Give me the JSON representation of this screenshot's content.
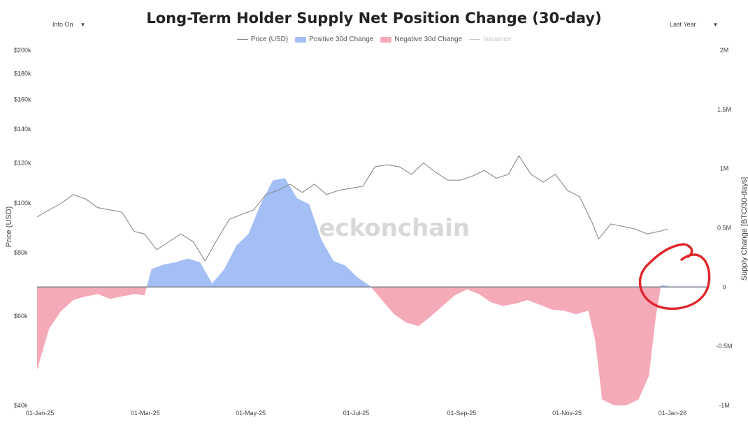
{
  "header": {
    "info_toggle": "Info On",
    "range_select": "Last Year",
    "caret": "▼"
  },
  "chart_data": {
    "type": "area",
    "title": "Long-Term Holder Supply Net Position Change (30-day)",
    "watermark": "checkonchain",
    "legend": [
      {
        "name": "Price (USD)",
        "kind": "line",
        "color": "#8a8a8a",
        "muted": false
      },
      {
        "name": "Positive 30d Change",
        "kind": "swatch",
        "color": "#a4bff5",
        "muted": false
      },
      {
        "name": "Negative 30d Change",
        "kind": "swatch",
        "color": "#f5aab8",
        "muted": false
      },
      {
        "name": "Issuance",
        "kind": "line",
        "color": "#cccccc",
        "muted": true
      }
    ],
    "legend_position": "top-center",
    "grid": false,
    "x_ticks": [
      "01-Jan-25",
      "01-Mar-25",
      "01-May-25",
      "01-Jul-25",
      "01-Sep-25",
      "01-Nov-25",
      "01-Jan-26"
    ],
    "x_range": [
      "2025-01-01",
      "2026-01-01"
    ],
    "y_left": {
      "label": "Price (USD)",
      "scale": "log",
      "ticks": [
        "$200k",
        "$180k",
        "$160k",
        "$140k",
        "$120k",
        "$100k",
        "$80k",
        "$60k",
        "$40k"
      ],
      "tick_values": [
        200000,
        180000,
        160000,
        140000,
        120000,
        100000,
        80000,
        60000,
        40000
      ],
      "range": [
        40000,
        200000
      ]
    },
    "y_right": {
      "label": "Supply Change [BTC/30-days]",
      "ticks": [
        "2M",
        "1.5M",
        "1M",
        "0.5M",
        "0",
        "-0.5M",
        "-1M"
      ],
      "tick_values": [
        2000000,
        1500000,
        1000000,
        500000,
        0,
        -500000,
        -1000000
      ],
      "range": [
        -1000000,
        2000000
      ]
    },
    "series": [
      {
        "name": "Price (USD)",
        "color": "#8a8a8a",
        "points": [
          [
            "2025-01-01",
            94000
          ],
          [
            "2025-01-08",
            97000
          ],
          [
            "2025-01-15",
            100000
          ],
          [
            "2025-01-22",
            104000
          ],
          [
            "2025-01-29",
            102000
          ],
          [
            "2025-02-05",
            98000
          ],
          [
            "2025-02-12",
            97000
          ],
          [
            "2025-02-19",
            96000
          ],
          [
            "2025-02-26",
            88000
          ],
          [
            "2025-03-04",
            87000
          ],
          [
            "2025-03-11",
            81000
          ],
          [
            "2025-03-18",
            84000
          ],
          [
            "2025-03-25",
            87000
          ],
          [
            "2025-04-01",
            84000
          ],
          [
            "2025-04-08",
            77000
          ],
          [
            "2025-04-15",
            85000
          ],
          [
            "2025-04-22",
            93000
          ],
          [
            "2025-04-29",
            95000
          ],
          [
            "2025-05-06",
            97000
          ],
          [
            "2025-05-13",
            104000
          ],
          [
            "2025-05-20",
            106000
          ],
          [
            "2025-05-27",
            109000
          ],
          [
            "2025-06-03",
            105000
          ],
          [
            "2025-06-10",
            109000
          ],
          [
            "2025-06-17",
            104000
          ],
          [
            "2025-06-24",
            106000
          ],
          [
            "2025-07-01",
            107000
          ],
          [
            "2025-07-08",
            108000
          ],
          [
            "2025-07-15",
            118000
          ],
          [
            "2025-07-22",
            119000
          ],
          [
            "2025-07-29",
            118000
          ],
          [
            "2025-08-05",
            114000
          ],
          [
            "2025-08-12",
            120000
          ],
          [
            "2025-08-19",
            115000
          ],
          [
            "2025-08-26",
            111000
          ],
          [
            "2025-09-02",
            111000
          ],
          [
            "2025-09-09",
            113000
          ],
          [
            "2025-09-16",
            116000
          ],
          [
            "2025-09-23",
            112000
          ],
          [
            "2025-09-30",
            114000
          ],
          [
            "2025-10-06",
            124000
          ],
          [
            "2025-10-13",
            114000
          ],
          [
            "2025-10-20",
            110000
          ],
          [
            "2025-10-27",
            114000
          ],
          [
            "2025-11-03",
            106000
          ],
          [
            "2025-11-10",
            103000
          ],
          [
            "2025-11-17",
            92000
          ],
          [
            "2025-11-21",
            85000
          ],
          [
            "2025-11-28",
            91000
          ],
          [
            "2025-12-05",
            90000
          ],
          [
            "2025-12-12",
            89000
          ],
          [
            "2025-12-19",
            87000
          ],
          [
            "2025-12-26",
            88000
          ],
          [
            "2025-12-31",
            89000
          ]
        ]
      },
      {
        "name": "30d Change",
        "points": [
          [
            "2025-01-01",
            -700000
          ],
          [
            "2025-01-08",
            -350000
          ],
          [
            "2025-01-15",
            -200000
          ],
          [
            "2025-01-22",
            -110000
          ],
          [
            "2025-01-29",
            -80000
          ],
          [
            "2025-02-05",
            -60000
          ],
          [
            "2025-02-12",
            -100000
          ],
          [
            "2025-02-19",
            -80000
          ],
          [
            "2025-02-26",
            -60000
          ],
          [
            "2025-03-04",
            -70000
          ],
          [
            "2025-03-08",
            150000
          ],
          [
            "2025-03-15",
            190000
          ],
          [
            "2025-03-22",
            210000
          ],
          [
            "2025-03-29",
            240000
          ],
          [
            "2025-04-05",
            210000
          ],
          [
            "2025-04-12",
            30000
          ],
          [
            "2025-04-19",
            150000
          ],
          [
            "2025-04-26",
            350000
          ],
          [
            "2025-05-03",
            450000
          ],
          [
            "2025-05-10",
            700000
          ],
          [
            "2025-05-17",
            900000
          ],
          [
            "2025-05-24",
            920000
          ],
          [
            "2025-05-31",
            750000
          ],
          [
            "2025-06-07",
            700000
          ],
          [
            "2025-06-14",
            400000
          ],
          [
            "2025-06-21",
            220000
          ],
          [
            "2025-06-28",
            180000
          ],
          [
            "2025-07-05",
            80000
          ],
          [
            "2025-07-12",
            10000
          ],
          [
            "2025-07-19",
            -110000
          ],
          [
            "2025-07-26",
            -230000
          ],
          [
            "2025-08-02",
            -300000
          ],
          [
            "2025-08-09",
            -330000
          ],
          [
            "2025-08-16",
            -250000
          ],
          [
            "2025-08-23",
            -160000
          ],
          [
            "2025-08-30",
            -70000
          ],
          [
            "2025-09-06",
            -20000
          ],
          [
            "2025-09-13",
            -60000
          ],
          [
            "2025-09-20",
            -130000
          ],
          [
            "2025-09-27",
            -160000
          ],
          [
            "2025-10-04",
            -140000
          ],
          [
            "2025-10-11",
            -110000
          ],
          [
            "2025-10-18",
            -150000
          ],
          [
            "2025-10-25",
            -190000
          ],
          [
            "2025-11-01",
            -200000
          ],
          [
            "2025-11-08",
            -230000
          ],
          [
            "2025-11-15",
            -200000
          ],
          [
            "2025-11-19",
            -450000
          ],
          [
            "2025-11-23",
            -950000
          ],
          [
            "2025-11-30",
            -1000000
          ],
          [
            "2025-12-07",
            -1000000
          ],
          [
            "2025-12-14",
            -950000
          ],
          [
            "2025-12-20",
            -750000
          ],
          [
            "2025-12-24",
            -250000
          ],
          [
            "2025-12-27",
            15000
          ],
          [
            "2025-12-31",
            10000
          ]
        ]
      }
    ]
  }
}
